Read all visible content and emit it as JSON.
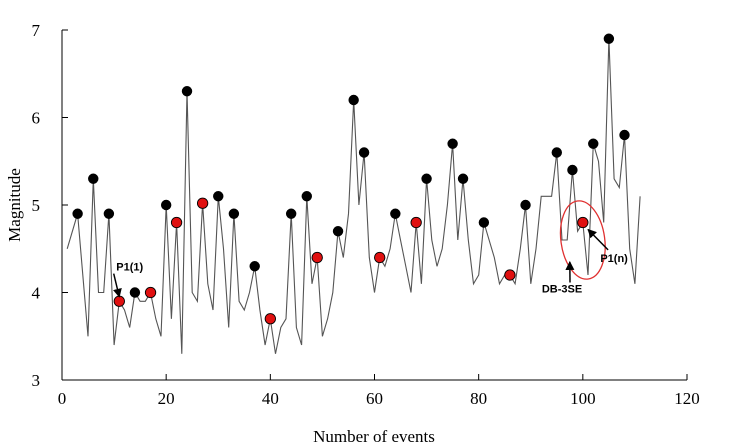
{
  "chart_data": {
    "type": "line",
    "xlabel": "Number of events",
    "ylabel": "Magnitude",
    "xlim": [
      0,
      120
    ],
    "ylim": [
      3,
      7
    ],
    "xticks": [
      0,
      20,
      40,
      60,
      80,
      100,
      120
    ],
    "yticks": [
      3,
      4,
      5,
      6,
      7
    ],
    "grid": false,
    "colors": {
      "line": "#555555",
      "black_marker": "#000000",
      "red_marker": "#e01010",
      "ellipse": "#e03030"
    },
    "series": [
      {
        "x": [
          1,
          3,
          5,
          6,
          7,
          8,
          9,
          10,
          11,
          12,
          13,
          14,
          15,
          16,
          17,
          18,
          19,
          20,
          21,
          22,
          23,
          24,
          25,
          26,
          27,
          28,
          29,
          30,
          31,
          32,
          33,
          34,
          35,
          36,
          37,
          38,
          39,
          40,
          41,
          42,
          43,
          44,
          45,
          46,
          47,
          48,
          49,
          50,
          51,
          52,
          53,
          54,
          55,
          56,
          57,
          58,
          59,
          60,
          61,
          62,
          63,
          64,
          65,
          66,
          67,
          68,
          69,
          70,
          71,
          72,
          73,
          74,
          75,
          76,
          77,
          78,
          79,
          80,
          81,
          82,
          83,
          84,
          85,
          86,
          87,
          88,
          89,
          90,
          91,
          92,
          93,
          94,
          95,
          96,
          97,
          98,
          99,
          100,
          101,
          102,
          103,
          104,
          105,
          106,
          107,
          108,
          109,
          110,
          111
        ],
        "y": [
          4.5,
          4.9,
          3.5,
          5.3,
          4.0,
          4.0,
          4.9,
          3.4,
          3.9,
          3.8,
          3.6,
          4.0,
          3.9,
          3.9,
          4.0,
          3.7,
          3.5,
          5.0,
          3.7,
          4.8,
          3.3,
          6.3,
          4.0,
          3.9,
          5.02,
          4.1,
          3.8,
          5.1,
          4.5,
          3.6,
          4.9,
          3.9,
          3.8,
          4.0,
          4.3,
          3.8,
          3.4,
          3.7,
          3.3,
          3.6,
          3.7,
          4.9,
          3.6,
          3.4,
          5.1,
          4.1,
          4.4,
          3.5,
          3.7,
          4.0,
          4.7,
          4.4,
          4.9,
          6.2,
          5.0,
          5.6,
          4.4,
          4.0,
          4.4,
          4.3,
          4.5,
          4.9,
          4.6,
          4.3,
          4.0,
          4.8,
          4.1,
          5.3,
          4.6,
          4.3,
          4.5,
          5.0,
          5.7,
          4.6,
          5.3,
          4.6,
          4.1,
          4.2,
          4.8,
          4.6,
          4.4,
          4.1,
          4.2,
          4.2,
          4.1,
          4.5,
          5.0,
          4.1,
          4.5,
          5.1,
          5.1,
          5.1,
          5.6,
          4.6,
          4.6,
          5.4,
          4.7,
          4.8,
          4.2,
          5.7,
          5.5,
          4.8,
          6.9,
          5.3,
          5.2,
          5.8,
          4.5,
          4.1,
          5.1
        ]
      }
    ],
    "black_markers": {
      "x": [
        3,
        6,
        9,
        14,
        20,
        24,
        30,
        33,
        37,
        44,
        47,
        53,
        56,
        58,
        64,
        70,
        75,
        77,
        81,
        89,
        95,
        98,
        102,
        105,
        108
      ],
      "y": [
        4.9,
        5.3,
        4.9,
        4.0,
        5.0,
        6.3,
        5.1,
        4.9,
        4.3,
        4.9,
        5.1,
        4.7,
        6.2,
        5.6,
        4.9,
        5.3,
        5.7,
        5.3,
        4.8,
        5.0,
        5.6,
        5.4,
        5.7,
        6.9,
        5.8
      ]
    },
    "red_markers": {
      "x": [
        11,
        17,
        22,
        27,
        40,
        49,
        61,
        68,
        86,
        100
      ],
      "y": [
        3.9,
        4.0,
        4.8,
        5.02,
        3.7,
        4.4,
        4.4,
        4.8,
        4.2,
        4.8
      ]
    },
    "annotations": [
      {
        "text": "P1(1)",
        "x": 13,
        "y": 4.25,
        "arrow_to": [
          11,
          3.95
        ]
      },
      {
        "text": "DB-3SE",
        "x": 96,
        "y": 4.0,
        "arrow_to": [
          97.5,
          4.35
        ]
      },
      {
        "text": "P1(n)",
        "x": 106,
        "y": 4.35,
        "arrow_to": [
          101,
          4.72
        ]
      }
    ],
    "ellipse": {
      "cx": 100,
      "cy": 4.6,
      "rx": 4.2,
      "ry": 0.45,
      "rotation": -8
    }
  }
}
